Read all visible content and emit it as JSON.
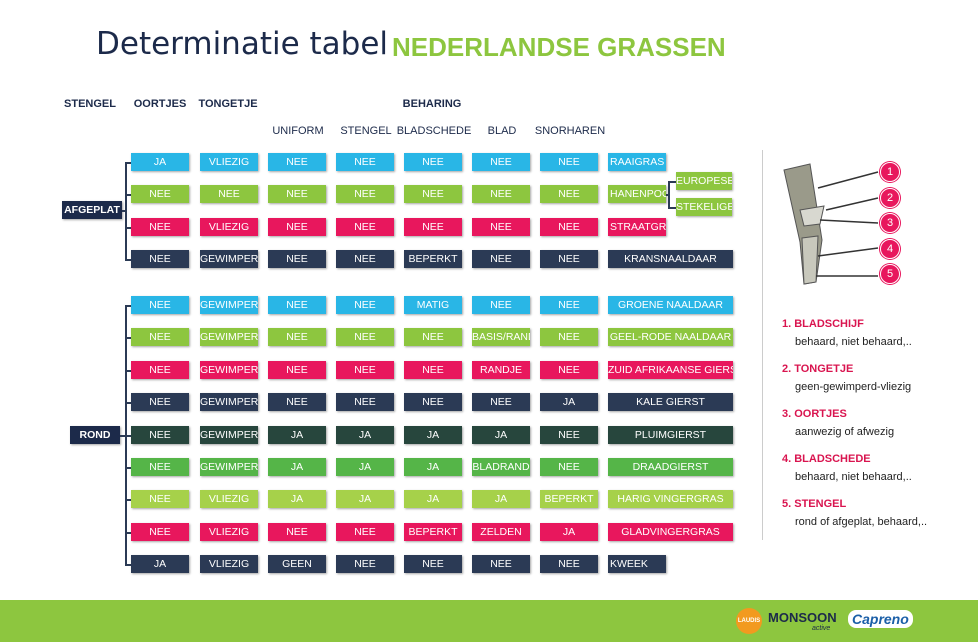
{
  "header": {
    "title_script": "Determinatie tabel",
    "title_bold": "NEDERLANDSE GRASSEN"
  },
  "columns": {
    "stengel": "STENGEL",
    "oortjes": "OORTJES",
    "tongetje": "TONGETJE",
    "beharing": "BEHARING",
    "sub": [
      "UNIFORM",
      "STENGEL",
      "BLADSCHEDE",
      "BLAD",
      "SNORHAREN"
    ]
  },
  "groups": [
    {
      "label": "AFGEPLAT",
      "rows": [
        {
          "color": "#29b6e6",
          "cells": [
            "JA",
            "VLIEZIG",
            "NEE",
            "NEE",
            "NEE",
            "NEE",
            "NEE"
          ],
          "name": "RAAIGRAS"
        },
        {
          "color": "#8dc63f",
          "cells": [
            "NEE",
            "NEE",
            "NEE",
            "NEE",
            "NEE",
            "NEE",
            "NEE"
          ],
          "name": "HANENPOOT",
          "branches": [
            "EUROPESE",
            "STEKELIGE"
          ]
        },
        {
          "color": "#e8175d",
          "cells": [
            "NEE",
            "VLIEZIG",
            "NEE",
            "NEE",
            "NEE",
            "NEE",
            "NEE"
          ],
          "name": "STRAATGRAS"
        },
        {
          "color": "#2b3a55",
          "cells": [
            "NEE",
            "GEWIMPERD",
            "NEE",
            "NEE",
            "BEPERKT",
            "NEE",
            "NEE"
          ],
          "name": "KRANSNAALDAAR"
        }
      ]
    },
    {
      "label": "ROND",
      "rows": [
        {
          "color": "#29b6e6",
          "cells": [
            "NEE",
            "GEWIMPERD",
            "NEE",
            "NEE",
            "MATIG",
            "NEE",
            "NEE"
          ],
          "name": "GROENE NAALDAAR"
        },
        {
          "color": "#8dc63f",
          "cells": [
            "NEE",
            "GEWIMPERD",
            "NEE",
            "NEE",
            "NEE",
            "BASIS/RAND",
            "NEE"
          ],
          "name": "GEEL-RODE NAALDAAR"
        },
        {
          "color": "#e8175d",
          "cells": [
            "NEE",
            "GEWIMPERD",
            "NEE",
            "NEE",
            "NEE",
            "RANDJE",
            "NEE"
          ],
          "name": "ZUID AFRIKAANSE GIERST"
        },
        {
          "color": "#2b3a55",
          "cells": [
            "NEE",
            "GEWIMPERD",
            "NEE",
            "NEE",
            "NEE",
            "NEE",
            "JA"
          ],
          "name": "KALE GIERST"
        },
        {
          "color": "#27463d",
          "cells": [
            "NEE",
            "GEWIMPERD",
            "JA",
            "JA",
            "JA",
            "JA",
            "NEE"
          ],
          "name": "PLUIMGIERST"
        },
        {
          "color": "#55b548",
          "cells": [
            "NEE",
            "GEWIMPERD",
            "JA",
            "JA",
            "JA",
            "BLADRAND",
            "NEE"
          ],
          "name": "DRAADGIERST"
        },
        {
          "color": "#a6d14a",
          "cells": [
            "NEE",
            "VLIEZIG",
            "JA",
            "JA",
            "JA",
            "JA",
            "BEPERKT"
          ],
          "name": "HARIG VINGERGRAS"
        },
        {
          "color": "#e8175d",
          "cells": [
            "NEE",
            "VLIEZIG",
            "NEE",
            "NEE",
            "BEPERKT",
            "ZELDEN",
            "JA"
          ],
          "name": "GLADVINGERGRAS"
        },
        {
          "color": "#2b3a55",
          "cells": [
            "JA",
            "VLIEZIG",
            "GEEN",
            "NEE",
            "NEE",
            "NEE",
            "NEE"
          ],
          "name": "KWEEK"
        }
      ]
    }
  ],
  "markers": [
    "1",
    "2",
    "3",
    "4",
    "5"
  ],
  "legend": [
    {
      "title": "1. BLADSCHIJF",
      "text": "behaard, niet behaard,.."
    },
    {
      "title": "2. TONGETJE",
      "text": "geen-gewimperd-vliezig"
    },
    {
      "title": "3. OORTJES",
      "text": "aanwezig of afwezig"
    },
    {
      "title": "4. BLADSCHEDE",
      "text": "behaard, niet behaard,.."
    },
    {
      "title": "5. STENGEL",
      "text": "rond of afgeplat, behaard,.."
    }
  ],
  "footer": {
    "logos": [
      "LAUDIS",
      "MONSOON",
      "active",
      "Capreno"
    ]
  }
}
